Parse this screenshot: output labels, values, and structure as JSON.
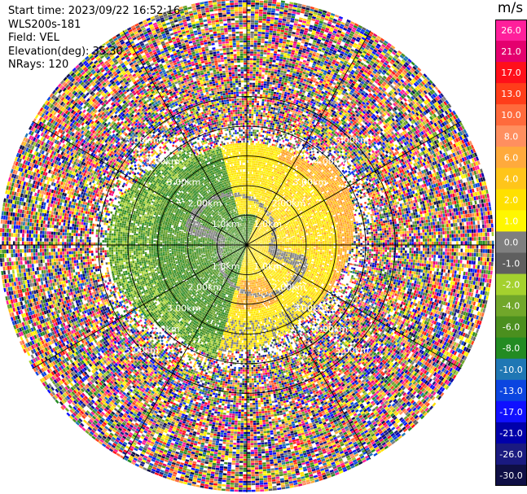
{
  "info": {
    "start_time": "Start time: 2023/09/22 16:52:16",
    "instrument": "WLS200s-181",
    "field": "Field: VEL",
    "elevation": "Elevation(deg): 35.30",
    "nrays": "NRays: 120"
  },
  "colorbar": {
    "unit": "m/s",
    "labels": [
      "26.0",
      "21.0",
      "17.0",
      "13.0",
      "10.0",
      "8.0",
      "6.0",
      "4.0",
      "2.0",
      "1.0",
      "0.0",
      "-1.0",
      "-2.0",
      "-4.0",
      "-6.0",
      "-8.0",
      "-10.0",
      "-13.0",
      "-17.0",
      "-21.0",
      "-26.0",
      "-30.0"
    ],
    "colors": [
      "#ff1f9b",
      "#e4006e",
      "#ff0f1a",
      "#ff3d1a",
      "#ff6a3c",
      "#ff8f5f",
      "#ffaa3c",
      "#ffc51a",
      "#ffe000",
      "#fff700",
      "#7f7f7f",
      "#5f5f5f",
      "#a4d12e",
      "#71a72a",
      "#4b8f1e",
      "#238b22",
      "#1f77b4",
      "#0b45e0",
      "#1010ff",
      "#0000aa",
      "#1a1a80",
      "#0f0f45"
    ]
  },
  "chart_data": {
    "type": "ppi",
    "field": "VEL",
    "units": "m/s",
    "nrays": 120,
    "elevation_deg": 35.3,
    "range_rings_km": [
      {
        "km": 1.0,
        "label": "1.0km"
      },
      {
        "km": 2.0,
        "label": "2.00km"
      },
      {
        "km": 3.0,
        "label": "3.00km"
      },
      {
        "km": 4.0,
        "label": "4.00km"
      },
      {
        "km": 5.0,
        "label": "5.00km"
      }
    ],
    "max_range_km": 5.0,
    "ring_label_angles_deg": [
      45,
      135,
      225,
      315
    ]
  }
}
